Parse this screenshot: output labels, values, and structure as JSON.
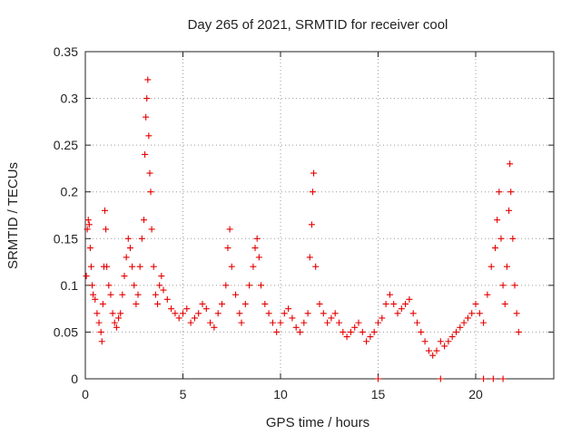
{
  "chart_data": {
    "type": "scatter",
    "title": "Day 265 of 2021, SRMTID for receiver cool",
    "xlabel": "GPS time / hours",
    "ylabel": "SRMTID / TECUs",
    "xlim": [
      0,
      24
    ],
    "ylim": [
      0,
      0.35
    ],
    "xticks": [
      0,
      5,
      10,
      15,
      20
    ],
    "xtick_labels": [
      "0",
      "5",
      "10",
      "15",
      "20"
    ],
    "yticks": [
      0,
      0.05,
      0.1,
      0.15,
      0.2,
      0.25,
      0.3,
      0.35
    ],
    "ytick_labels": [
      "0",
      "0.05",
      "0.1",
      "0.15",
      "0.2",
      "0.25",
      "0.3",
      "0.35"
    ],
    "grid": true,
    "marker": "+",
    "marker_color": "#e60000",
    "series": [
      {
        "name": "SRMTID",
        "points": [
          [
            0.05,
            0.11
          ],
          [
            0.1,
            0.16
          ],
          [
            0.15,
            0.17
          ],
          [
            0.2,
            0.165
          ],
          [
            0.25,
            0.14
          ],
          [
            0.3,
            0.12
          ],
          [
            0.35,
            0.1
          ],
          [
            0.4,
            0.09
          ],
          [
            0.5,
            0.085
          ],
          [
            0.6,
            0.07
          ],
          [
            0.7,
            0.06
          ],
          [
            0.8,
            0.05
          ],
          [
            0.85,
            0.04
          ],
          [
            0.9,
            0.08
          ],
          [
            0.95,
            0.12
          ],
          [
            1.0,
            0.18
          ],
          [
            1.05,
            0.16
          ],
          [
            1.1,
            0.12
          ],
          [
            1.2,
            0.1
          ],
          [
            1.3,
            0.09
          ],
          [
            1.4,
            0.07
          ],
          [
            1.5,
            0.06
          ],
          [
            1.6,
            0.055
          ],
          [
            1.7,
            0.065
          ],
          [
            1.8,
            0.07
          ],
          [
            1.9,
            0.09
          ],
          [
            2.0,
            0.11
          ],
          [
            2.1,
            0.13
          ],
          [
            2.2,
            0.15
          ],
          [
            2.3,
            0.14
          ],
          [
            2.4,
            0.12
          ],
          [
            2.5,
            0.1
          ],
          [
            2.6,
            0.08
          ],
          [
            2.7,
            0.09
          ],
          [
            2.8,
            0.12
          ],
          [
            2.9,
            0.15
          ],
          [
            3.0,
            0.17
          ],
          [
            3.05,
            0.24
          ],
          [
            3.1,
            0.28
          ],
          [
            3.15,
            0.3
          ],
          [
            3.2,
            0.32
          ],
          [
            3.25,
            0.26
          ],
          [
            3.3,
            0.22
          ],
          [
            3.35,
            0.2
          ],
          [
            3.4,
            0.16
          ],
          [
            3.5,
            0.12
          ],
          [
            3.6,
            0.09
          ],
          [
            3.7,
            0.08
          ],
          [
            3.8,
            0.1
          ],
          [
            3.9,
            0.11
          ],
          [
            4.0,
            0.095
          ],
          [
            4.2,
            0.085
          ],
          [
            4.4,
            0.075
          ],
          [
            4.6,
            0.07
          ],
          [
            4.8,
            0.065
          ],
          [
            5.0,
            0.07
          ],
          [
            5.2,
            0.075
          ],
          [
            5.4,
            0.06
          ],
          [
            5.6,
            0.065
          ],
          [
            5.8,
            0.07
          ],
          [
            6.0,
            0.08
          ],
          [
            6.2,
            0.075
          ],
          [
            6.4,
            0.06
          ],
          [
            6.6,
            0.055
          ],
          [
            6.8,
            0.07
          ],
          [
            7.0,
            0.08
          ],
          [
            7.2,
            0.1
          ],
          [
            7.3,
            0.14
          ],
          [
            7.4,
            0.16
          ],
          [
            7.5,
            0.12
          ],
          [
            7.7,
            0.09
          ],
          [
            7.9,
            0.07
          ],
          [
            8.0,
            0.06
          ],
          [
            8.2,
            0.08
          ],
          [
            8.4,
            0.1
          ],
          [
            8.6,
            0.12
          ],
          [
            8.7,
            0.14
          ],
          [
            8.8,
            0.15
          ],
          [
            8.9,
            0.13
          ],
          [
            9.0,
            0.1
          ],
          [
            9.2,
            0.08
          ],
          [
            9.4,
            0.07
          ],
          [
            9.6,
            0.06
          ],
          [
            9.8,
            0.05
          ],
          [
            10.0,
            0.06
          ],
          [
            10.2,
            0.07
          ],
          [
            10.4,
            0.075
          ],
          [
            10.6,
            0.065
          ],
          [
            10.8,
            0.055
          ],
          [
            11.0,
            0.05
          ],
          [
            11.2,
            0.06
          ],
          [
            11.4,
            0.07
          ],
          [
            11.5,
            0.13
          ],
          [
            11.6,
            0.165
          ],
          [
            11.65,
            0.2
          ],
          [
            11.7,
            0.22
          ],
          [
            11.8,
            0.12
          ],
          [
            12.0,
            0.08
          ],
          [
            12.2,
            0.07
          ],
          [
            12.4,
            0.06
          ],
          [
            12.6,
            0.065
          ],
          [
            12.8,
            0.07
          ],
          [
            13.0,
            0.06
          ],
          [
            13.2,
            0.05
          ],
          [
            13.4,
            0.045
          ],
          [
            13.6,
            0.05
          ],
          [
            13.8,
            0.055
          ],
          [
            14.0,
            0.06
          ],
          [
            14.2,
            0.05
          ],
          [
            14.4,
            0.04
          ],
          [
            14.6,
            0.045
          ],
          [
            14.8,
            0.05
          ],
          [
            15.0,
            0.06
          ],
          [
            15.2,
            0.065
          ],
          [
            15.4,
            0.08
          ],
          [
            15.6,
            0.09
          ],
          [
            15.8,
            0.08
          ],
          [
            16.0,
            0.07
          ],
          [
            16.2,
            0.075
          ],
          [
            16.4,
            0.08
          ],
          [
            16.6,
            0.085
          ],
          [
            16.8,
            0.07
          ],
          [
            17.0,
            0.06
          ],
          [
            17.2,
            0.05
          ],
          [
            17.4,
            0.04
          ],
          [
            17.6,
            0.03
          ],
          [
            17.8,
            0.025
          ],
          [
            18.0,
            0.03
          ],
          [
            18.2,
            0.04
          ],
          [
            18.4,
            0.035
          ],
          [
            18.6,
            0.04
          ],
          [
            18.8,
            0.045
          ],
          [
            19.0,
            0.05
          ],
          [
            19.2,
            0.055
          ],
          [
            19.4,
            0.06
          ],
          [
            19.6,
            0.065
          ],
          [
            19.8,
            0.07
          ],
          [
            20.0,
            0.08
          ],
          [
            20.2,
            0.07
          ],
          [
            20.4,
            0.06
          ],
          [
            20.6,
            0.09
          ],
          [
            20.8,
            0.12
          ],
          [
            21.0,
            0.14
          ],
          [
            21.1,
            0.17
          ],
          [
            21.2,
            0.2
          ],
          [
            21.3,
            0.15
          ],
          [
            21.4,
            0.1
          ],
          [
            21.5,
            0.08
          ],
          [
            21.6,
            0.12
          ],
          [
            21.7,
            0.18
          ],
          [
            21.75,
            0.23
          ],
          [
            21.8,
            0.2
          ],
          [
            21.9,
            0.15
          ],
          [
            22.0,
            0.1
          ],
          [
            22.1,
            0.07
          ],
          [
            22.2,
            0.05
          ]
        ]
      }
    ],
    "zero_markers_x": [
      15.0,
      18.2,
      20.4,
      20.9,
      21.4
    ]
  }
}
